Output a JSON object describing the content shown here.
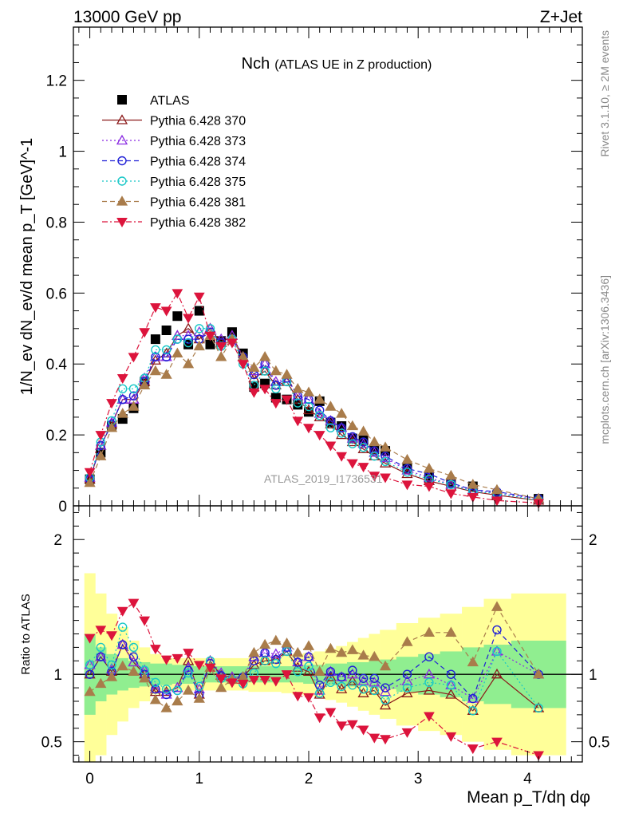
{
  "header": {
    "energy_label": "13000 GeV pp",
    "process_label": "Z+Jet"
  },
  "side_labels": {
    "rivet": "Rivet 3.1.10, ≥ 2M events",
    "mcplots": "mcplots.cern.ch [arXiv:1306.3436]"
  },
  "watermark": "ATLAS_2019_I1736531",
  "chart_data": [
    {
      "type": "scatter",
      "panel": "main",
      "title_main": "Nch",
      "title_sub": "(ATLAS UE in Z production)",
      "ylabel": "1/N_ev dN_ev/d mean p_T [GeV]^-1",
      "xlabel": "Mean p_T/dη dφ",
      "xlim": [
        -0.15,
        4.5
      ],
      "ylim": [
        0,
        1.35
      ],
      "x_ticks": [
        0,
        1,
        2,
        3,
        4
      ],
      "x_tick_labels": [
        "0",
        "1",
        "2",
        "3",
        "4"
      ],
      "y_ticks": [
        0.2,
        0.4,
        0.6,
        0.8,
        1.0,
        1.2
      ],
      "y_tick_labels": [
        "0.2",
        "0.4",
        "0.6",
        "0.8",
        "1",
        "1.2"
      ],
      "y_zero_label": "0",
      "legend_position": "top-left",
      "x": [
        0.0,
        0.1,
        0.2,
        0.3,
        0.4,
        0.5,
        0.6,
        0.7,
        0.8,
        0.9,
        1.0,
        1.1,
        1.2,
        1.3,
        1.4,
        1.5,
        1.6,
        1.7,
        1.8,
        1.9,
        2.0,
        2.1,
        2.2,
        2.3,
        2.4,
        2.5,
        2.6,
        2.7,
        2.9,
        3.1,
        3.3,
        3.5,
        3.72,
        4.1
      ],
      "series": [
        {
          "name": "ATLAS",
          "color": "#000000",
          "marker": "square-filled",
          "line": "none",
          "values": [
            0.075,
            0.15,
            0.225,
            0.245,
            0.275,
            0.35,
            0.47,
            0.495,
            0.535,
            0.455,
            0.55,
            0.455,
            0.465,
            0.49,
            0.43,
            0.335,
            0.345,
            0.305,
            0.3,
            0.285,
            0.265,
            0.295,
            0.235,
            0.225,
            0.19,
            0.185,
            0.16,
            0.155,
            0.105,
            0.08,
            0.065,
            0.055,
            0.03,
            0.02
          ]
        },
        {
          "name": "Pythia 6.428 370",
          "color": "#8b1a1a",
          "marker": "triangle-open",
          "line": "solid",
          "values": [
            0.075,
            0.17,
            0.23,
            0.3,
            0.3,
            0.35,
            0.41,
            0.43,
            0.48,
            0.5,
            0.47,
            0.5,
            0.46,
            0.48,
            0.42,
            0.36,
            0.38,
            0.34,
            0.35,
            0.3,
            0.27,
            0.25,
            0.23,
            0.2,
            0.18,
            0.16,
            0.14,
            0.12,
            0.09,
            0.07,
            0.055,
            0.04,
            0.03,
            0.015
          ]
        },
        {
          "name": "Pythia 6.428 373",
          "color": "#8a2be2",
          "marker": "triangle-open",
          "line": "dotted",
          "values": [
            0.08,
            0.17,
            0.235,
            0.3,
            0.3,
            0.36,
            0.42,
            0.42,
            0.48,
            0.48,
            0.49,
            0.5,
            0.47,
            0.48,
            0.42,
            0.38,
            0.4,
            0.35,
            0.36,
            0.31,
            0.3,
            0.26,
            0.24,
            0.22,
            0.19,
            0.175,
            0.15,
            0.135,
            0.1,
            0.08,
            0.06,
            0.045,
            0.035,
            0.02
          ]
        },
        {
          "name": "Pythia 6.428 374",
          "color": "#1f1fd6",
          "marker": "circle-open",
          "line": "dashed",
          "values": [
            0.075,
            0.17,
            0.23,
            0.3,
            0.31,
            0.35,
            0.42,
            0.42,
            0.47,
            0.47,
            0.47,
            0.49,
            0.46,
            0.47,
            0.42,
            0.37,
            0.4,
            0.34,
            0.36,
            0.31,
            0.3,
            0.27,
            0.24,
            0.22,
            0.195,
            0.18,
            0.155,
            0.14,
            0.105,
            0.09,
            0.065,
            0.045,
            0.04,
            0.02
          ]
        },
        {
          "name": "Pythia 6.428 375",
          "color": "#17c7c7",
          "marker": "circle-open",
          "line": "dotted",
          "values": [
            0.08,
            0.18,
            0.24,
            0.33,
            0.33,
            0.36,
            0.44,
            0.44,
            0.47,
            0.46,
            0.5,
            0.5,
            0.45,
            0.47,
            0.4,
            0.34,
            0.38,
            0.33,
            0.35,
            0.29,
            0.28,
            0.255,
            0.22,
            0.205,
            0.175,
            0.165,
            0.14,
            0.125,
            0.095,
            0.075,
            0.06,
            0.04,
            0.035,
            0.015
          ]
        },
        {
          "name": "Pythia 6.428 381",
          "color": "#a97c4b",
          "marker": "triangle-filled",
          "line": "dashed",
          "values": [
            0.065,
            0.14,
            0.22,
            0.26,
            0.28,
            0.34,
            0.38,
            0.37,
            0.43,
            0.4,
            0.45,
            0.48,
            0.42,
            0.47,
            0.42,
            0.39,
            0.42,
            0.38,
            0.37,
            0.33,
            0.32,
            0.3,
            0.28,
            0.26,
            0.225,
            0.21,
            0.18,
            0.165,
            0.13,
            0.105,
            0.085,
            0.06,
            0.045,
            0.02
          ]
        },
        {
          "name": "Pythia 6.428 382",
          "color": "#dc143c",
          "marker": "triangle-down-filled",
          "line": "dashdot",
          "values": [
            0.095,
            0.2,
            0.29,
            0.36,
            0.42,
            0.49,
            0.56,
            0.55,
            0.6,
            0.53,
            0.59,
            0.48,
            0.45,
            0.46,
            0.4,
            0.32,
            0.33,
            0.29,
            0.3,
            0.24,
            0.22,
            0.2,
            0.17,
            0.14,
            0.12,
            0.11,
            0.085,
            0.08,
            0.06,
            0.055,
            0.035,
            0.025,
            0.015,
            0.008
          ]
        }
      ]
    },
    {
      "type": "line",
      "panel": "ratio",
      "ylabel": "Ratio to ATLAS",
      "ylim": [
        0.35,
        2.25
      ],
      "xlim": [
        -0.15,
        4.5
      ],
      "y_ticks": [
        0.5,
        1,
        2
      ],
      "y_tick_labels": [
        "0.5",
        "1",
        "2"
      ],
      "reference_line": 1,
      "band_edges": [
        -0.05,
        0.05,
        0.15,
        0.25,
        0.35,
        0.45,
        0.55,
        0.65,
        0.75,
        0.85,
        0.95,
        1.05,
        1.15,
        1.25,
        1.35,
        1.45,
        1.55,
        1.65,
        1.75,
        1.85,
        1.95,
        2.05,
        2.15,
        2.25,
        2.35,
        2.45,
        2.55,
        2.65,
        2.8,
        3.0,
        3.2,
        3.4,
        3.6,
        3.85,
        4.35
      ],
      "band_stat": [
        0.3,
        0.2,
        0.15,
        0.12,
        0.1,
        0.09,
        0.08,
        0.08,
        0.07,
        0.07,
        0.06,
        0.06,
        0.06,
        0.06,
        0.06,
        0.06,
        0.06,
        0.06,
        0.06,
        0.06,
        0.07,
        0.07,
        0.08,
        0.08,
        0.09,
        0.09,
        0.1,
        0.11,
        0.13,
        0.15,
        0.17,
        0.2,
        0.22,
        0.25
      ],
      "band_total": [
        0.75,
        0.6,
        0.45,
        0.35,
        0.25,
        0.2,
        0.15,
        0.12,
        0.12,
        0.12,
        0.12,
        0.12,
        0.12,
        0.12,
        0.12,
        0.13,
        0.13,
        0.13,
        0.14,
        0.15,
        0.16,
        0.17,
        0.19,
        0.21,
        0.24,
        0.27,
        0.3,
        0.33,
        0.38,
        0.42,
        0.45,
        0.5,
        0.56,
        0.6
      ],
      "band_colors": {
        "stat": "#90ee90",
        "total": "#ffff99"
      },
      "series": [
        {
          "name": "Pythia 6.428 370",
          "values": [
            1.0,
            1.13,
            1.02,
            1.22,
            1.09,
            1.0,
            0.87,
            0.87,
            0.9,
            1.1,
            0.85,
            1.1,
            0.99,
            0.98,
            0.98,
            1.07,
            1.1,
            1.11,
            1.17,
            1.05,
            1.02,
            0.85,
            0.98,
            0.89,
            0.95,
            0.86,
            0.88,
            0.77,
            0.86,
            0.88,
            0.85,
            0.73,
            1.0,
            0.75
          ]
        },
        {
          "name": "Pythia 6.428 373",
          "values": [
            1.07,
            1.13,
            1.04,
            1.22,
            1.09,
            1.03,
            0.89,
            0.85,
            0.9,
            1.05,
            0.89,
            1.1,
            1.01,
            0.98,
            0.98,
            1.13,
            1.16,
            1.15,
            1.2,
            1.09,
            1.13,
            0.88,
            1.02,
            0.98,
            1.0,
            0.95,
            0.94,
            0.87,
            0.95,
            1.0,
            0.92,
            0.82,
            1.17,
            1.0
          ]
        },
        {
          "name": "Pythia 6.428 374",
          "values": [
            1.0,
            1.13,
            1.02,
            1.22,
            1.13,
            1.0,
            0.89,
            0.85,
            0.88,
            1.03,
            0.85,
            1.08,
            0.99,
            0.96,
            0.98,
            1.1,
            1.16,
            1.11,
            1.2,
            1.09,
            1.13,
            0.92,
            1.02,
            0.98,
            1.03,
            0.97,
            0.97,
            0.9,
            1.0,
            1.13,
            1.0,
            0.82,
            1.33,
            1.0
          ]
        },
        {
          "name": "Pythia 6.428 375",
          "values": [
            1.07,
            1.2,
            1.07,
            1.35,
            1.2,
            1.03,
            0.94,
            0.89,
            0.88,
            1.01,
            0.91,
            1.1,
            0.97,
            0.96,
            0.93,
            1.01,
            1.1,
            1.08,
            1.17,
            1.02,
            1.06,
            0.86,
            0.94,
            0.91,
            0.92,
            0.89,
            0.88,
            0.81,
            0.9,
            0.94,
            0.92,
            0.73,
            1.17,
            0.75
          ]
        },
        {
          "name": "Pythia 6.428 381",
          "values": [
            0.87,
            0.93,
            0.98,
            1.06,
            1.02,
            0.97,
            0.81,
            0.75,
            0.8,
            0.88,
            0.82,
            1.05,
            0.9,
            0.96,
            0.98,
            1.16,
            1.22,
            1.25,
            1.23,
            1.16,
            1.21,
            1.02,
            1.19,
            1.16,
            1.18,
            1.14,
            1.13,
            1.06,
            1.24,
            1.31,
            1.31,
            1.09,
            1.5,
            1.0
          ]
        },
        {
          "name": "Pythia 6.428 382",
          "values": [
            1.27,
            1.33,
            1.29,
            1.47,
            1.53,
            1.4,
            1.19,
            1.11,
            1.12,
            1.16,
            1.07,
            1.05,
            0.97,
            0.94,
            0.93,
            0.96,
            0.96,
            0.95,
            1.0,
            0.84,
            0.83,
            0.68,
            0.72,
            0.62,
            0.63,
            0.59,
            0.53,
            0.52,
            0.57,
            0.69,
            0.54,
            0.45,
            0.5,
            0.4
          ]
        }
      ]
    }
  ]
}
